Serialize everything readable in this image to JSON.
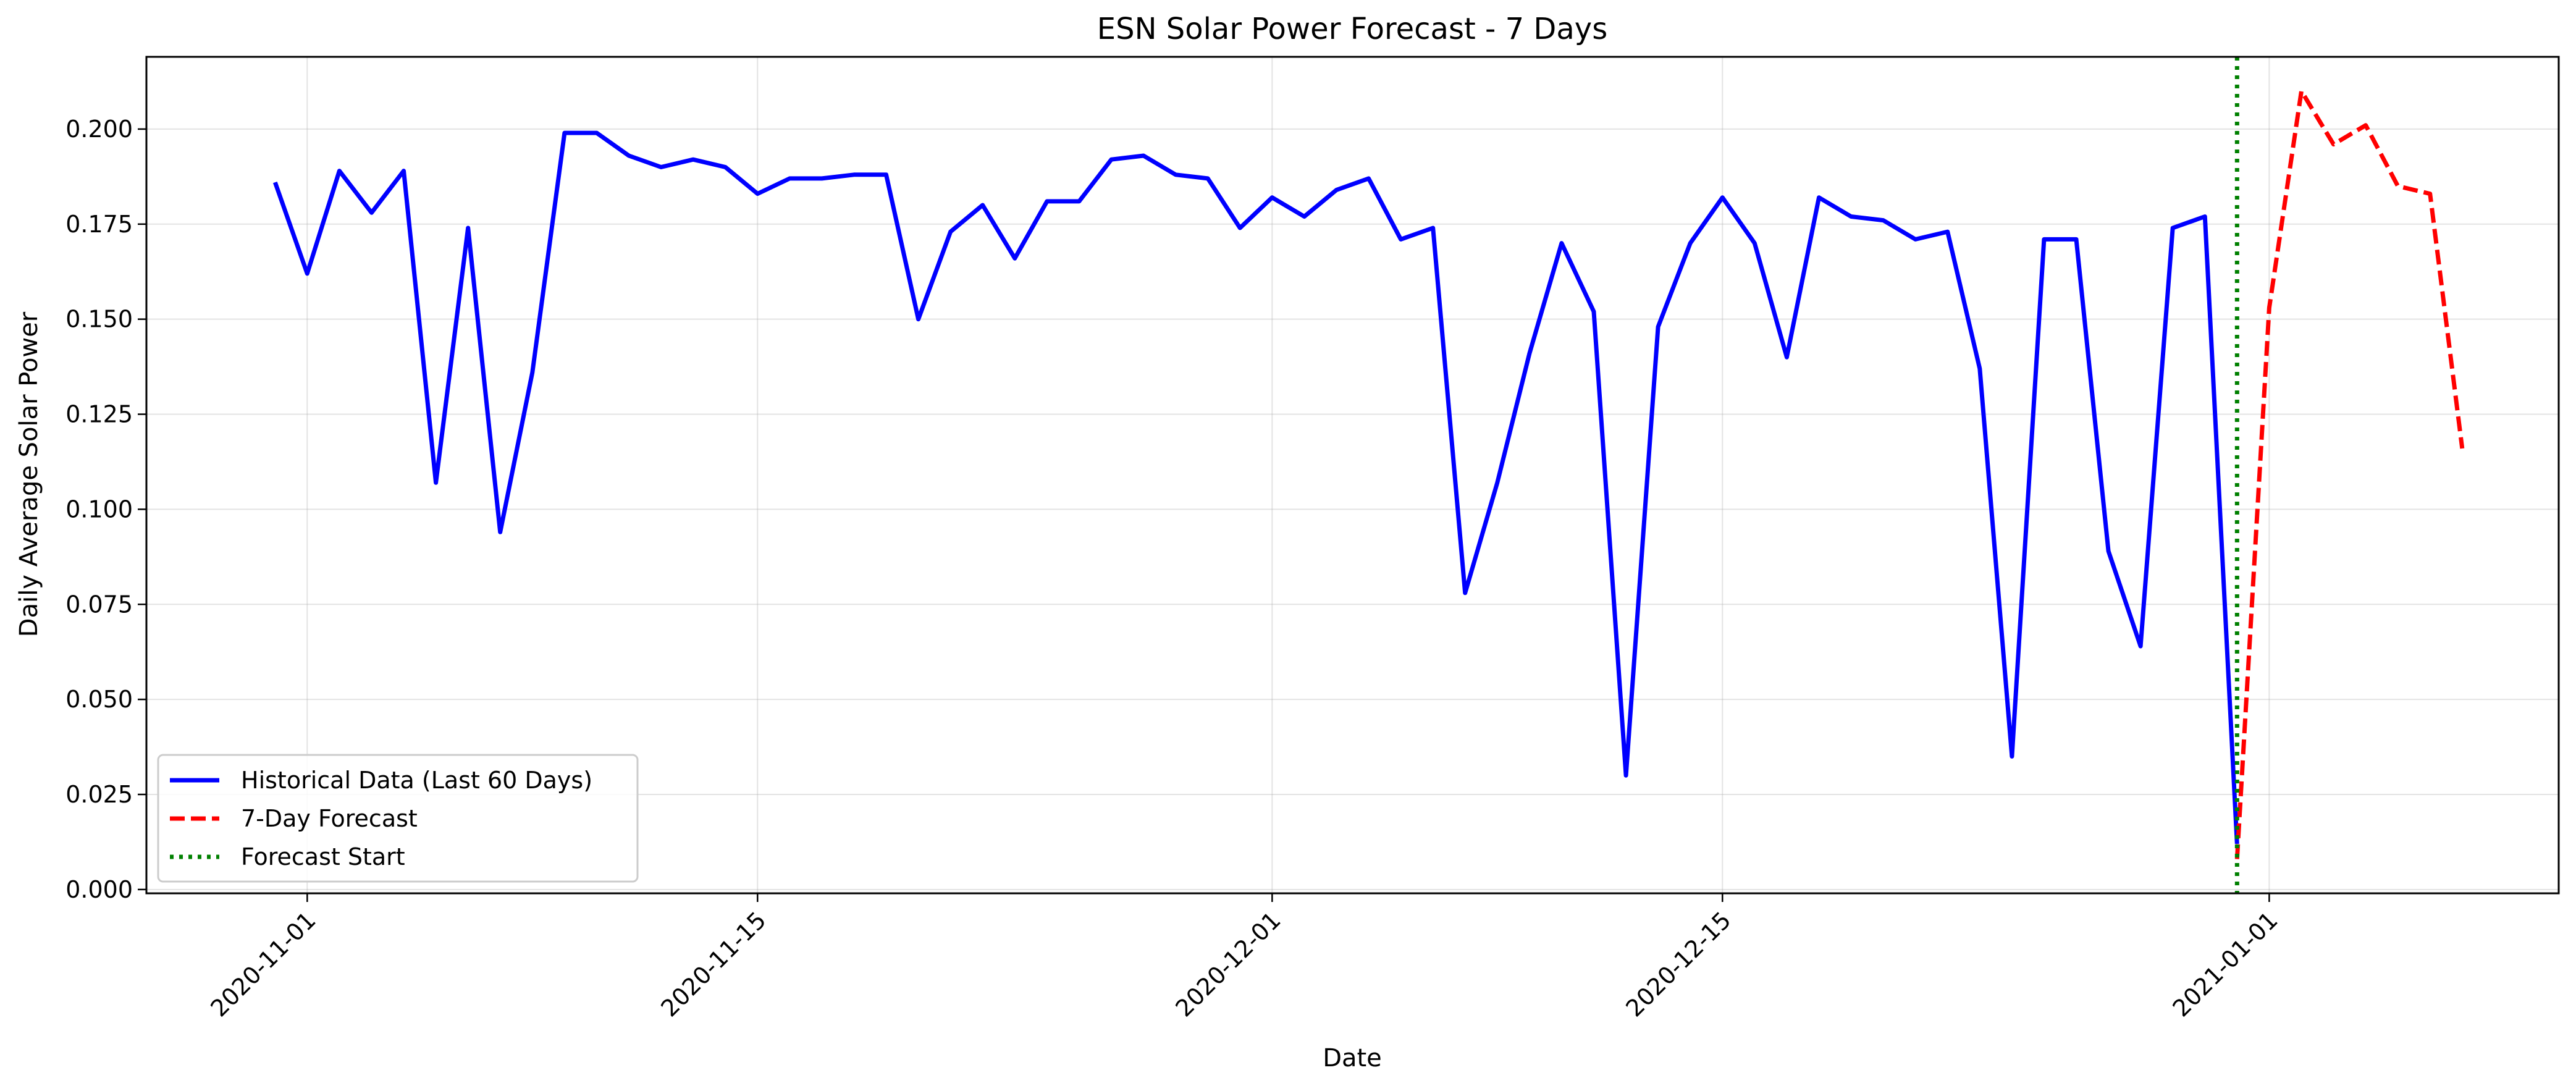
{
  "chart_data": {
    "type": "line",
    "title": "ESN Solar Power Forecast - 7 Days",
    "xlabel": "Date",
    "ylabel": "Daily Average Solar Power",
    "x_tick_labels": [
      "2020-11-01",
      "2020-11-15",
      "2020-12-01",
      "2020-12-15",
      "2021-01-01"
    ],
    "xlim": [
      "2020-10-27",
      "2021-01-10"
    ],
    "y_tick_labels": [
      "0.000",
      "0.025",
      "0.050",
      "0.075",
      "0.100",
      "0.125",
      "0.150",
      "0.175",
      "0.200"
    ],
    "ylim": [
      -0.001,
      0.219
    ],
    "grid": true,
    "legend_position": "lower-left",
    "series": [
      {
        "name": "Historical Data (Last 60 Days)",
        "color": "#0000ff",
        "linestyle": "solid",
        "x": [
          "2020-10-31",
          "2020-11-01",
          "2020-11-02",
          "2020-11-03",
          "2020-11-04",
          "2020-11-05",
          "2020-11-06",
          "2020-11-07",
          "2020-11-08",
          "2020-11-09",
          "2020-11-10",
          "2020-11-11",
          "2020-11-12",
          "2020-11-13",
          "2020-11-14",
          "2020-11-15",
          "2020-11-16",
          "2020-11-17",
          "2020-11-18",
          "2020-11-19",
          "2020-11-20",
          "2020-11-21",
          "2020-11-22",
          "2020-11-23",
          "2020-11-24",
          "2020-11-25",
          "2020-11-26",
          "2020-11-27",
          "2020-11-28",
          "2020-11-29",
          "2020-11-30",
          "2020-12-01",
          "2020-12-02",
          "2020-12-03",
          "2020-12-04",
          "2020-12-05",
          "2020-12-06",
          "2020-12-07",
          "2020-12-08",
          "2020-12-09",
          "2020-12-10",
          "2020-12-11",
          "2020-12-12",
          "2020-12-13",
          "2020-12-14",
          "2020-12-15",
          "2020-12-16",
          "2020-12-17",
          "2020-12-18",
          "2020-12-19",
          "2020-12-20",
          "2020-12-21",
          "2020-12-22",
          "2020-12-23",
          "2020-12-24",
          "2020-12-25",
          "2020-12-26",
          "2020-12-27",
          "2020-12-28",
          "2020-12-29",
          "2020-12-30",
          "2020-12-31"
        ],
        "values": [
          0.186,
          0.162,
          0.189,
          0.178,
          0.189,
          0.107,
          0.174,
          0.094,
          0.136,
          0.199,
          0.199,
          0.193,
          0.19,
          0.192,
          0.19,
          0.183,
          0.187,
          0.187,
          0.188,
          0.188,
          0.15,
          0.173,
          0.18,
          0.166,
          0.181,
          0.181,
          0.192,
          0.193,
          0.188,
          0.187,
          0.174,
          0.182,
          0.177,
          0.184,
          0.187,
          0.171,
          0.174,
          0.078,
          0.107,
          0.141,
          0.17,
          0.152,
          0.03,
          0.148,
          0.17,
          0.182,
          0.17,
          0.14,
          0.182,
          0.177,
          0.176,
          0.171,
          0.173,
          0.137,
          0.035,
          0.171,
          0.171,
          0.089,
          0.064,
          0.174,
          0.177,
          0.012
        ]
      },
      {
        "name": "7-Day Forecast",
        "color": "#ff0000",
        "linestyle": "dashed",
        "x": [
          "2020-12-31",
          "2021-01-01",
          "2021-01-02",
          "2021-01-03",
          "2021-01-04",
          "2021-01-05",
          "2021-01-06",
          "2021-01-07"
        ],
        "values": [
          0.008,
          0.153,
          0.21,
          0.196,
          0.201,
          0.185,
          0.183,
          0.116
        ]
      },
      {
        "name": "Forecast Start",
        "color": "#008000",
        "linestyle": "dotted",
        "type": "vline",
        "x": "2020-12-31"
      }
    ]
  }
}
